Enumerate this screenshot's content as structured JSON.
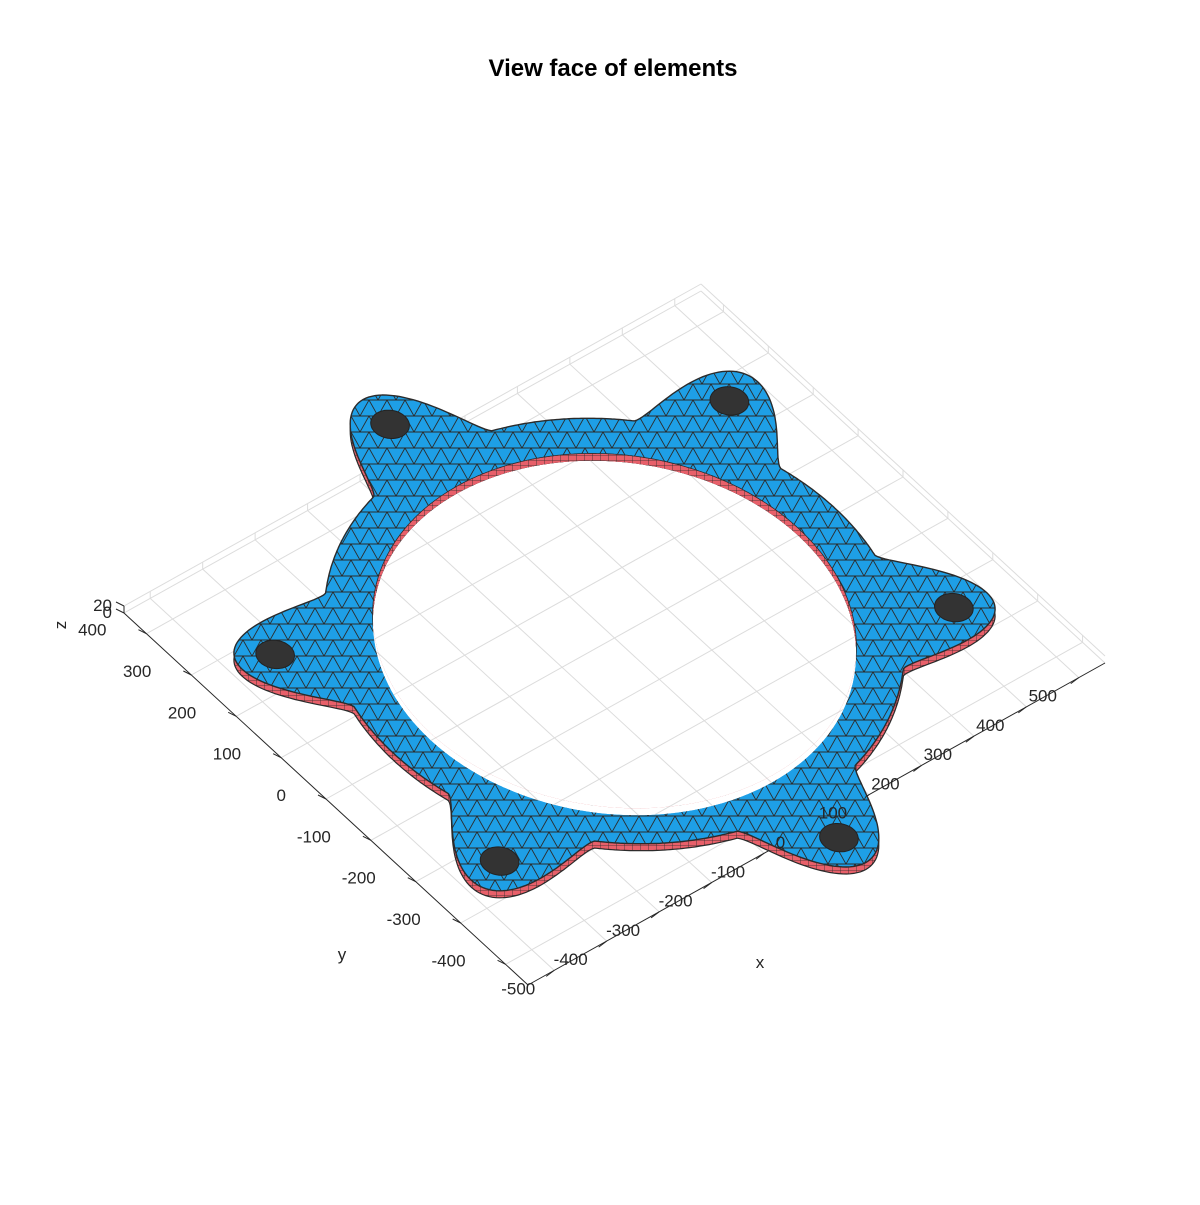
{
  "title": "View face of elements",
  "axes": {
    "x": {
      "label": "x",
      "ticks": [
        "-500",
        "-400",
        "-300",
        "-200",
        "-100",
        "0",
        "100",
        "200",
        "300",
        "400",
        "500"
      ]
    },
    "y": {
      "label": "y",
      "ticks": [
        "-400",
        "-300",
        "-200",
        "-100",
        "0",
        "100",
        "200",
        "300",
        "400"
      ]
    },
    "z": {
      "label": "z",
      "ticks": [
        "0",
        "20"
      ]
    }
  },
  "colors": {
    "top_face": "#1e9fe6",
    "side_face": "#e8606a",
    "mesh_edge": "#2b2b2b",
    "bolt_hole": "#333333",
    "grid": "#dcdcdc"
  },
  "model": {
    "type": "flange-ring-mesh",
    "lugs": 6,
    "outer_radius": 420,
    "inner_radius": 350,
    "lug_radius": 500,
    "thickness": 20
  }
}
